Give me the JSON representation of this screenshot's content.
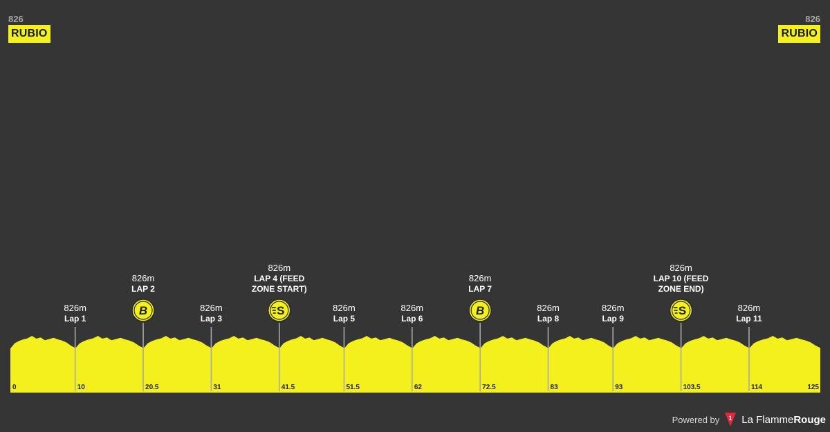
{
  "start": {
    "altitude": "826",
    "name": "RUBIO"
  },
  "finish": {
    "altitude": "826",
    "name": "RUBIO"
  },
  "footer": {
    "powered_by": "Powered by",
    "brand_light": "La Flamme",
    "brand_bold": "Rouge",
    "logo_color": "#e8253a"
  },
  "colors": {
    "background": "#353535",
    "profile_fill": "#f3f01e",
    "marker_line": "#a9a9a9",
    "baseline": "#2a2a2a"
  },
  "chart_data": {
    "type": "area",
    "title": "",
    "xlabel": "",
    "ylabel": "",
    "x_max_km": 125,
    "x_ticks": [
      "0",
      "10",
      "20.5",
      "31",
      "41.5",
      "51.5",
      "62",
      "72.5",
      "83",
      "93",
      "103.5",
      "114",
      "125"
    ],
    "waypoints": [
      {
        "km": 10,
        "altitude": "826m",
        "label": [
          "Lap 1"
        ],
        "icon": ""
      },
      {
        "km": 20.5,
        "altitude": "826m",
        "label": [
          "LAP 2"
        ],
        "icon": "b-icon"
      },
      {
        "km": 31,
        "altitude": "826m",
        "label": [
          "Lap 3"
        ],
        "icon": ""
      },
      {
        "km": 41.5,
        "altitude": "826m",
        "label": [
          "LAP 4 (FEED",
          "ZONE START)"
        ],
        "icon": "feed-zone-icon"
      },
      {
        "km": 51.5,
        "altitude": "826m",
        "label": [
          "Lap 5"
        ],
        "icon": ""
      },
      {
        "km": 62,
        "altitude": "826m",
        "label": [
          "Lap 6"
        ],
        "icon": ""
      },
      {
        "km": 72.5,
        "altitude": "826m",
        "label": [
          "LAP 7"
        ],
        "icon": "b-icon"
      },
      {
        "km": 83,
        "altitude": "826m",
        "label": [
          "Lap 8"
        ],
        "icon": ""
      },
      {
        "km": 93,
        "altitude": "826m",
        "label": [
          "Lap 9"
        ],
        "icon": ""
      },
      {
        "km": 103.5,
        "altitude": "826m",
        "label": [
          "LAP 10 (FEED",
          "ZONE END)"
        ],
        "icon": "feed-zone-icon"
      },
      {
        "km": 114,
        "altitude": "826m",
        "label": [
          "Lap 11"
        ],
        "icon": ""
      }
    ],
    "lap_profile_relative": [
      0.35,
      0.62,
      0.74,
      0.82,
      0.88,
      1.0,
      0.86,
      0.92,
      0.78,
      0.84,
      0.9,
      0.82,
      0.76,
      0.66,
      0.5,
      0.38
    ]
  }
}
